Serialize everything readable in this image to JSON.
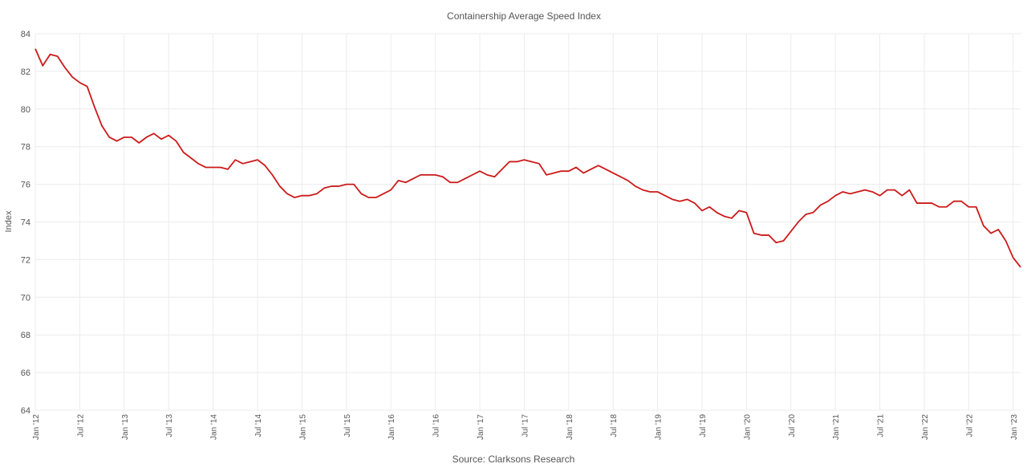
{
  "chart_data": {
    "type": "line",
    "title": "Containership Average Speed Index",
    "y_label": "Index",
    "source": "Source: Clarksons Research",
    "categories": [
      "Jan '12",
      null,
      null,
      null,
      null,
      null,
      "Jul '12",
      null,
      null,
      null,
      null,
      null,
      "Jan '13",
      null,
      null,
      null,
      null,
      null,
      "Jul '13",
      null,
      null,
      null,
      null,
      null,
      "Jan '14",
      null,
      null,
      null,
      null,
      null,
      "Jul '14",
      null,
      null,
      null,
      null,
      null,
      "Jan '15",
      null,
      null,
      null,
      null,
      null,
      "Jul '15",
      null,
      null,
      null,
      null,
      null,
      "Jan '16",
      null,
      null,
      null,
      null,
      null,
      "Jul '16",
      null,
      null,
      null,
      null,
      null,
      "Jan '17",
      null,
      null,
      null,
      null,
      null,
      "Jul '17",
      null,
      null,
      null,
      null,
      null,
      "Jan '18",
      null,
      null,
      null,
      null,
      null,
      "Jul '18",
      null,
      null,
      null,
      null,
      null,
      "Jan '19",
      null,
      null,
      null,
      null,
      null,
      "Jul '19",
      null,
      null,
      null,
      null,
      null,
      "Jan '20",
      null,
      null,
      null,
      null,
      null,
      "Jul '20",
      null,
      null,
      null,
      null,
      null,
      "Jan '21",
      null,
      null,
      null,
      null,
      null,
      "Jul '21",
      null,
      null,
      null,
      null,
      null,
      "Jan '22",
      null,
      null,
      null,
      null,
      null,
      "Jul '22",
      null,
      null,
      null,
      null,
      null,
      "Jan '23",
      null
    ],
    "values": [
      83.2,
      82.3,
      82.9,
      82.8,
      82.2,
      81.7,
      81.4,
      81.2,
      80.1,
      79.1,
      78.5,
      78.3,
      78.5,
      78.5,
      78.2,
      78.5,
      78.7,
      78.4,
      78.6,
      78.3,
      77.7,
      77.4,
      77.1,
      76.9,
      76.9,
      76.9,
      76.8,
      77.3,
      77.1,
      77.2,
      77.3,
      77.0,
      76.5,
      75.9,
      75.5,
      75.3,
      75.4,
      75.4,
      75.5,
      75.8,
      75.9,
      75.9,
      76.0,
      76.0,
      75.5,
      75.3,
      75.3,
      75.5,
      75.7,
      76.2,
      76.1,
      76.3,
      76.5,
      76.5,
      76.5,
      76.4,
      76.1,
      76.1,
      76.3,
      76.5,
      76.7,
      76.5,
      76.4,
      76.8,
      77.2,
      77.2,
      77.3,
      77.2,
      77.1,
      76.5,
      76.6,
      76.7,
      76.7,
      76.9,
      76.6,
      76.8,
      77.0,
      76.8,
      76.6,
      76.4,
      76.2,
      75.9,
      75.7,
      75.6,
      75.6,
      75.4,
      75.2,
      75.1,
      75.2,
      75.0,
      74.6,
      74.8,
      74.5,
      74.3,
      74.2,
      74.6,
      74.5,
      73.4,
      73.3,
      73.3,
      72.9,
      73.0,
      73.5,
      74.0,
      74.4,
      74.5,
      74.9,
      75.1,
      75.4,
      75.6,
      75.5,
      75.6,
      75.7,
      75.6,
      75.4,
      75.7,
      75.7,
      75.4,
      75.7,
      75.0,
      75.0,
      75.0,
      74.8,
      74.8,
      75.1,
      75.1,
      74.8,
      74.8,
      73.8,
      73.4,
      73.6,
      73.0,
      72.1,
      71.6
    ],
    "color": "#cc1a1a",
    "ylim": [
      64,
      84
    ],
    "yticks": [
      64,
      66,
      68,
      70,
      72,
      74,
      76,
      78,
      80,
      82,
      84
    ],
    "grid": true
  }
}
